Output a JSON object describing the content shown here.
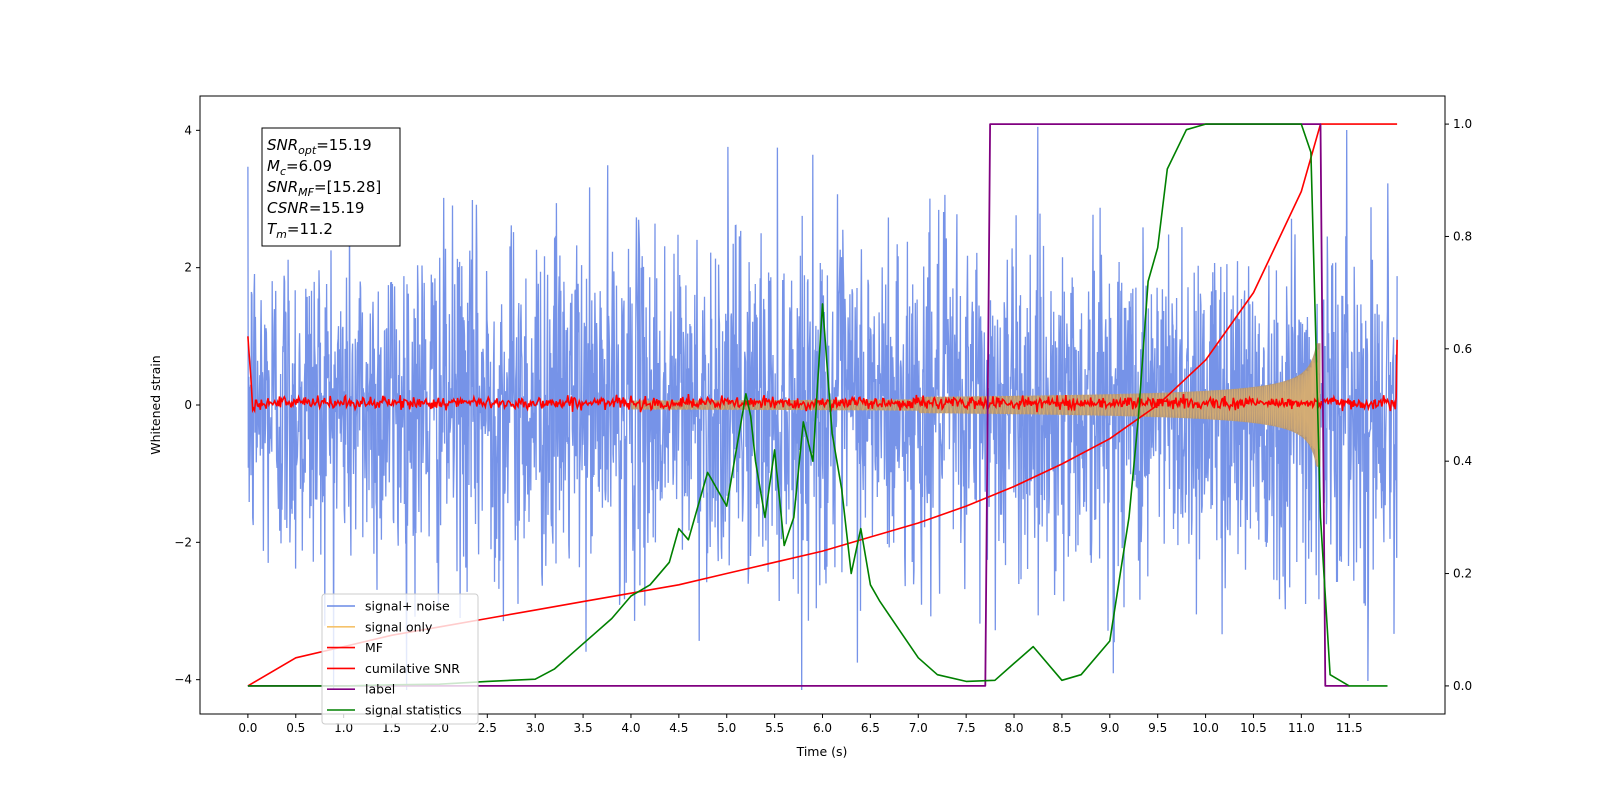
{
  "chart_data": {
    "type": "line",
    "xlabel": "Time (s)",
    "ylabel": "Whitened strain",
    "xlim": [
      -0.5,
      12.5
    ],
    "ylim": [
      -4.5,
      4.5
    ],
    "y2lim": [
      -0.05,
      1.05
    ],
    "x_ticks": [
      "0.0",
      "0.5",
      "1.0",
      "1.5",
      "2.0",
      "2.5",
      "3.0",
      "3.5",
      "4.0",
      "4.5",
      "5.0",
      "5.5",
      "6.0",
      "6.5",
      "7.0",
      "7.5",
      "8.0",
      "8.5",
      "9.0",
      "9.5",
      "10.0",
      "10.5",
      "11.0",
      "11.5"
    ],
    "y_ticks": [
      "4",
      "2",
      "0",
      "−2",
      "−4"
    ],
    "y2_ticks": [
      "1.0",
      "0.8",
      "0.6",
      "0.4",
      "0.2",
      "0.0"
    ],
    "duration_s": 12.0,
    "stats_box": [
      {
        "var": "SNR",
        "sub": "opt",
        "value": "=15.19"
      },
      {
        "var": "M",
        "sub": "c",
        "value": "=6.09"
      },
      {
        "var": "SNR",
        "sub": "MF",
        "value": "=[15.28]"
      },
      {
        "var": "CSNR",
        "sub": "",
        "value": "=15.19"
      },
      {
        "var": "T",
        "sub": "m",
        "value": "=11.2"
      }
    ],
    "series": [
      {
        "name": "signal+ noise",
        "color": "#6a8ae6",
        "axis": "left",
        "description_values": "noise amplitude ~1.2 sigma across 0.0-12.0 s"
      },
      {
        "name": "signal only",
        "color": "#f5c26b",
        "axis": "left",
        "envelope": {
          "t_merge": 11.2,
          "max_amp": 0.9
        }
      },
      {
        "name": "MF",
        "color": "#ff0000",
        "axis": "left",
        "level": 0.0,
        "edges": [
          1.0,
          0.95
        ]
      },
      {
        "name": "cumilative SNR",
        "color": "#ff0000",
        "axis": "right",
        "x": [
          0.0,
          0.5,
          1.0,
          1.5,
          2.0,
          2.5,
          3.0,
          3.5,
          4.0,
          4.5,
          5.0,
          5.5,
          6.0,
          6.5,
          7.0,
          7.5,
          8.0,
          8.5,
          9.0,
          9.5,
          10.0,
          10.5,
          11.0,
          11.2,
          12.0
        ],
        "y": [
          0.0,
          0.05,
          0.07,
          0.09,
          0.105,
          0.12,
          0.135,
          0.15,
          0.165,
          0.18,
          0.2,
          0.22,
          0.24,
          0.265,
          0.29,
          0.32,
          0.355,
          0.395,
          0.44,
          0.5,
          0.58,
          0.7,
          0.88,
          1.0,
          1.0
        ]
      },
      {
        "name": "label",
        "color": "#800080",
        "axis": "right",
        "x": [
          0.0,
          7.7,
          7.75,
          11.2,
          11.25,
          11.5
        ],
        "y": [
          0.0,
          0.0,
          1.0,
          1.0,
          0.0,
          0.0
        ]
      },
      {
        "name": "signal statistics",
        "color": "#008000",
        "axis": "right",
        "x": [
          0.0,
          0.5,
          1.0,
          1.5,
          2.0,
          2.5,
          3.0,
          3.2,
          3.4,
          3.6,
          3.8,
          4.0,
          4.2,
          4.4,
          4.5,
          4.6,
          4.8,
          5.0,
          5.2,
          5.25,
          5.3,
          5.4,
          5.5,
          5.6,
          5.7,
          5.8,
          5.9,
          6.0,
          6.1,
          6.2,
          6.3,
          6.4,
          6.5,
          6.6,
          6.8,
          7.0,
          7.2,
          7.5,
          7.8,
          8.0,
          8.2,
          8.5,
          8.7,
          9.0,
          9.2,
          9.3,
          9.4,
          9.5,
          9.6,
          9.8,
          10.0,
          10.5,
          11.0,
          11.1,
          11.2,
          11.3,
          11.5,
          11.9
        ],
        "y": [
          0.0,
          0.0,
          0.0,
          0.002,
          0.003,
          0.008,
          0.012,
          0.03,
          0.06,
          0.09,
          0.12,
          0.16,
          0.18,
          0.22,
          0.28,
          0.26,
          0.38,
          0.32,
          0.52,
          0.48,
          0.4,
          0.3,
          0.42,
          0.25,
          0.3,
          0.47,
          0.4,
          0.68,
          0.45,
          0.35,
          0.2,
          0.28,
          0.18,
          0.15,
          0.1,
          0.05,
          0.02,
          0.008,
          0.01,
          0.04,
          0.07,
          0.01,
          0.02,
          0.08,
          0.3,
          0.48,
          0.72,
          0.78,
          0.92,
          0.99,
          1.0,
          1.0,
          1.0,
          0.95,
          0.3,
          0.02,
          0.0,
          0.0
        ]
      }
    ],
    "legend_placement": "lower-left"
  }
}
